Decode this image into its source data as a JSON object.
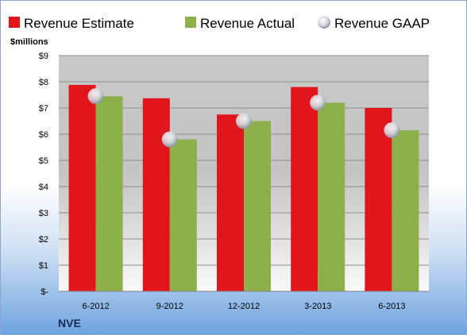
{
  "chart_data": {
    "type": "bar",
    "title": "",
    "ylabel": "$millions",
    "footer_label": "NVE",
    "categories": [
      "6-2012",
      "9-2012",
      "12-2012",
      "3-2013",
      "6-2013"
    ],
    "series": [
      {
        "name": "Revenue Estimate",
        "kind": "bar",
        "color": "#e0161c",
        "values": [
          7.88,
          7.37,
          6.75,
          7.8,
          7.0
        ]
      },
      {
        "name": "Revenue Actual",
        "kind": "bar",
        "color": "#8db04a",
        "values": [
          7.45,
          5.8,
          6.5,
          7.2,
          6.15
        ]
      },
      {
        "name": "Revenue GAAP",
        "kind": "marker",
        "color": "#c7ccd6",
        "values": [
          7.45,
          5.8,
          6.5,
          7.2,
          6.15
        ]
      }
    ],
    "ylim": [
      0,
      9
    ],
    "yticks": [
      0,
      1,
      2,
      3,
      4,
      5,
      6,
      7,
      8,
      9
    ],
    "ytick_labels": [
      "$-",
      "$1",
      "$2",
      "$3",
      "$4",
      "$5",
      "$6",
      "$7",
      "$8",
      "$9"
    ],
    "grid": true,
    "legend_position": "top"
  }
}
